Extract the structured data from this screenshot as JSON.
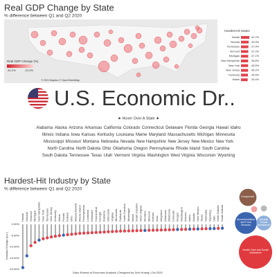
{
  "header": {
    "title": "Real GDP Change by State",
    "subtitle": "% difference between Q1 and Q2 2020"
  },
  "map": {
    "legend_title": "Real GDP Change (%)",
    "legend_range": [
      {
        "value": -40.2,
        "label": "-40.2%"
      },
      {
        "value": -23.9,
        "label": "-23.9%"
      }
    ],
    "credit": "© 2021 Mapbox © OpenStreetMap"
  },
  "hardest_hit_states": {
    "title": "Hardest-Hit States",
    "categories": [
      "Hawaii",
      "Nevada",
      "Tennessee",
      "Vermont",
      "Michigan",
      "New Hampshire",
      "New York",
      "New Jersey",
      "Kentucky",
      "Maine"
    ],
    "values": [
      -42.7,
      -39.3,
      -37.9,
      -37.2,
      -37.1,
      -36.8,
      -36.5,
      -36.2,
      -35.5,
      -34.4
    ],
    "value_labels": [
      "-42.7%",
      "-39.3%",
      "-37.9%",
      "-37.2%",
      "-37.1%",
      "-36.8%",
      "-36.5%",
      "-36.2%",
      "-35.5%",
      "-34.4%"
    ],
    "color": "#e0444c"
  },
  "dashboard": {
    "title": "U.S. Economic Dr..",
    "hint": "★ Hover Over A State ★",
    "states": [
      "Alabama",
      "Alaska",
      "Arizona",
      "Arkansas",
      "California",
      "Colorado",
      "Connecticut",
      "Delaware",
      "Florida",
      "Georgia",
      "Hawaii",
      "Idaho",
      "Illinois",
      "Indiana",
      "Iowa",
      "Kansas",
      "Kentucky",
      "Louisiana",
      "Maine",
      "Maryland",
      "Massachusetts",
      "Michigan",
      "Minnesota",
      "Mississippi",
      "Missouri",
      "Montana",
      "Nebraska",
      "Nevada",
      "New Hampshire",
      "New Jersey",
      "New Mexico",
      "New York",
      "North Carolina",
      "North Dakota",
      "Ohio",
      "Oklahoma",
      "Oregon",
      "Pennsylvania",
      "Rhode Island",
      "South Carolina",
      "South Dakota",
      "Tennessee",
      "Texas",
      "Utah",
      "Vermont",
      "Virginia",
      "Washington",
      "West Virginia",
      "Wisconsin",
      "Wyoming"
    ]
  },
  "chart_data": {
    "type": "lollipop",
    "title": "Hardest-Hit Industry by State",
    "subtitle": "% difference between Q1 and Q2 2020",
    "y_label": "Industry Change (p.p.)",
    "categories": [
      "Hawaii",
      "Nevada",
      "Vermont",
      "Michigan",
      "New Hampshire",
      "New York",
      "Tennessee",
      "New Jersey",
      "Kentucky",
      "Maine",
      "Florida",
      "Indiana",
      "Ohio",
      "Massachusetts",
      "Rhode Island",
      "Pennsylvania",
      "Louisiana",
      "Delaware",
      "Connecticut",
      "Georgia",
      "Alabama",
      "Wisconsin",
      "Virginia",
      "Minnesota",
      "California",
      "North Carolina",
      "Mississippi",
      "Illinois",
      "South Carolina",
      "West Virginia",
      "Montana",
      "Missouri",
      "Kansas",
      "Iowa",
      "Maryland",
      "Arkansas",
      "Oklahoma",
      "Colorado",
      "Oregon",
      "Washington",
      "Arizona",
      "Idaho",
      "Alaska",
      "New Mexico",
      "Texas",
      "Nebraska",
      "Wyoming",
      "Utah",
      "North Dakota",
      "South Dakota"
    ],
    "values": [
      -19.2,
      -14.0,
      -9.5,
      -8.0,
      -7.0,
      -6.4,
      -6.0,
      -5.6,
      -5.3,
      -5.0,
      -4.8,
      -4.6,
      -4.4,
      -4.2,
      -4.0,
      -3.9,
      -3.8,
      -3.7,
      -3.6,
      -3.5,
      -3.4,
      -3.3,
      -3.2,
      -3.1,
      -3.0,
      -2.95,
      -2.9,
      -2.85,
      -2.8,
      -2.75,
      -2.7,
      -2.65,
      -2.6,
      -2.55,
      -2.5,
      -2.45,
      -2.4,
      -2.35,
      -2.3,
      -2.25,
      -2.2,
      -2.15,
      -2.1,
      -2.05,
      -2.0,
      -1.95,
      -1.9,
      -1.85,
      -1.8,
      -1.7
    ],
    "colors": [
      "#3b64b0",
      "#3b64b0",
      "#e0444c",
      "#e0444c",
      "#3b64b0",
      "#e0444c",
      "#e0444c",
      "#e0444c",
      "#e0444c",
      "#e0444c",
      "#3b64b0",
      "#e0444c",
      "#e0444c",
      "#e0444c",
      "#e0444c",
      "#e0444c",
      "#e0444c",
      "#e0444c",
      "#e0444c",
      "#e0444c",
      "#e0444c",
      "#e0444c",
      "#e0444c",
      "#e0444c",
      "#e0444c",
      "#e0444c",
      "#e0444c",
      "#e0444c",
      "#e0444c",
      "#e0444c",
      "#3b64b0",
      "#e0444c",
      "#e0444c",
      "#e0444c",
      "#e0444c",
      "#e0444c",
      "#e0444c",
      "#e0444c",
      "#3b64b0",
      "#e0444c",
      "#e0444c",
      "#3b64b0",
      "#e0444c",
      "#3b64b0",
      "#e0444c",
      "#e0444c",
      "#3b64b0",
      "#3b64b0",
      "#e0444c",
      "#3b64b0"
    ],
    "stem_color": "#9a9a9a",
    "ylim": [
      -20,
      0
    ],
    "yticks": [
      {
        "value": 0,
        "label": "0.00%"
      },
      {
        "value": -5,
        "label": "-5.00%"
      },
      {
        "value": -10,
        "label": "-10.00%"
      },
      {
        "value": -15,
        "label": "-15.00%"
      },
      {
        "value": -20,
        "label": "-20.00%"
      }
    ],
    "industries": [
      {
        "name": "Transportati..",
        "color": "#8b5e4a",
        "value": 8
      },
      {
        "name": "Accommodation and Food Services",
        "color": "#3b64b0",
        "value": 13
      },
      {
        "name": "Durable Goods Manufacturing",
        "color": "#8fb0dc",
        "value": 6
      },
      {
        "name": "Health Care and Social Assistance",
        "color": "#e03a3e",
        "value": 30
      },
      {
        "name": null,
        "color": "#f2a0a0",
        "value": 1
      },
      {
        "name": null,
        "color": "#b8b8b8",
        "value": 1
      }
    ],
    "footer": "Data: Bureau of Economic Analysis | Designed by Jichi Huang | Oct 2020"
  }
}
